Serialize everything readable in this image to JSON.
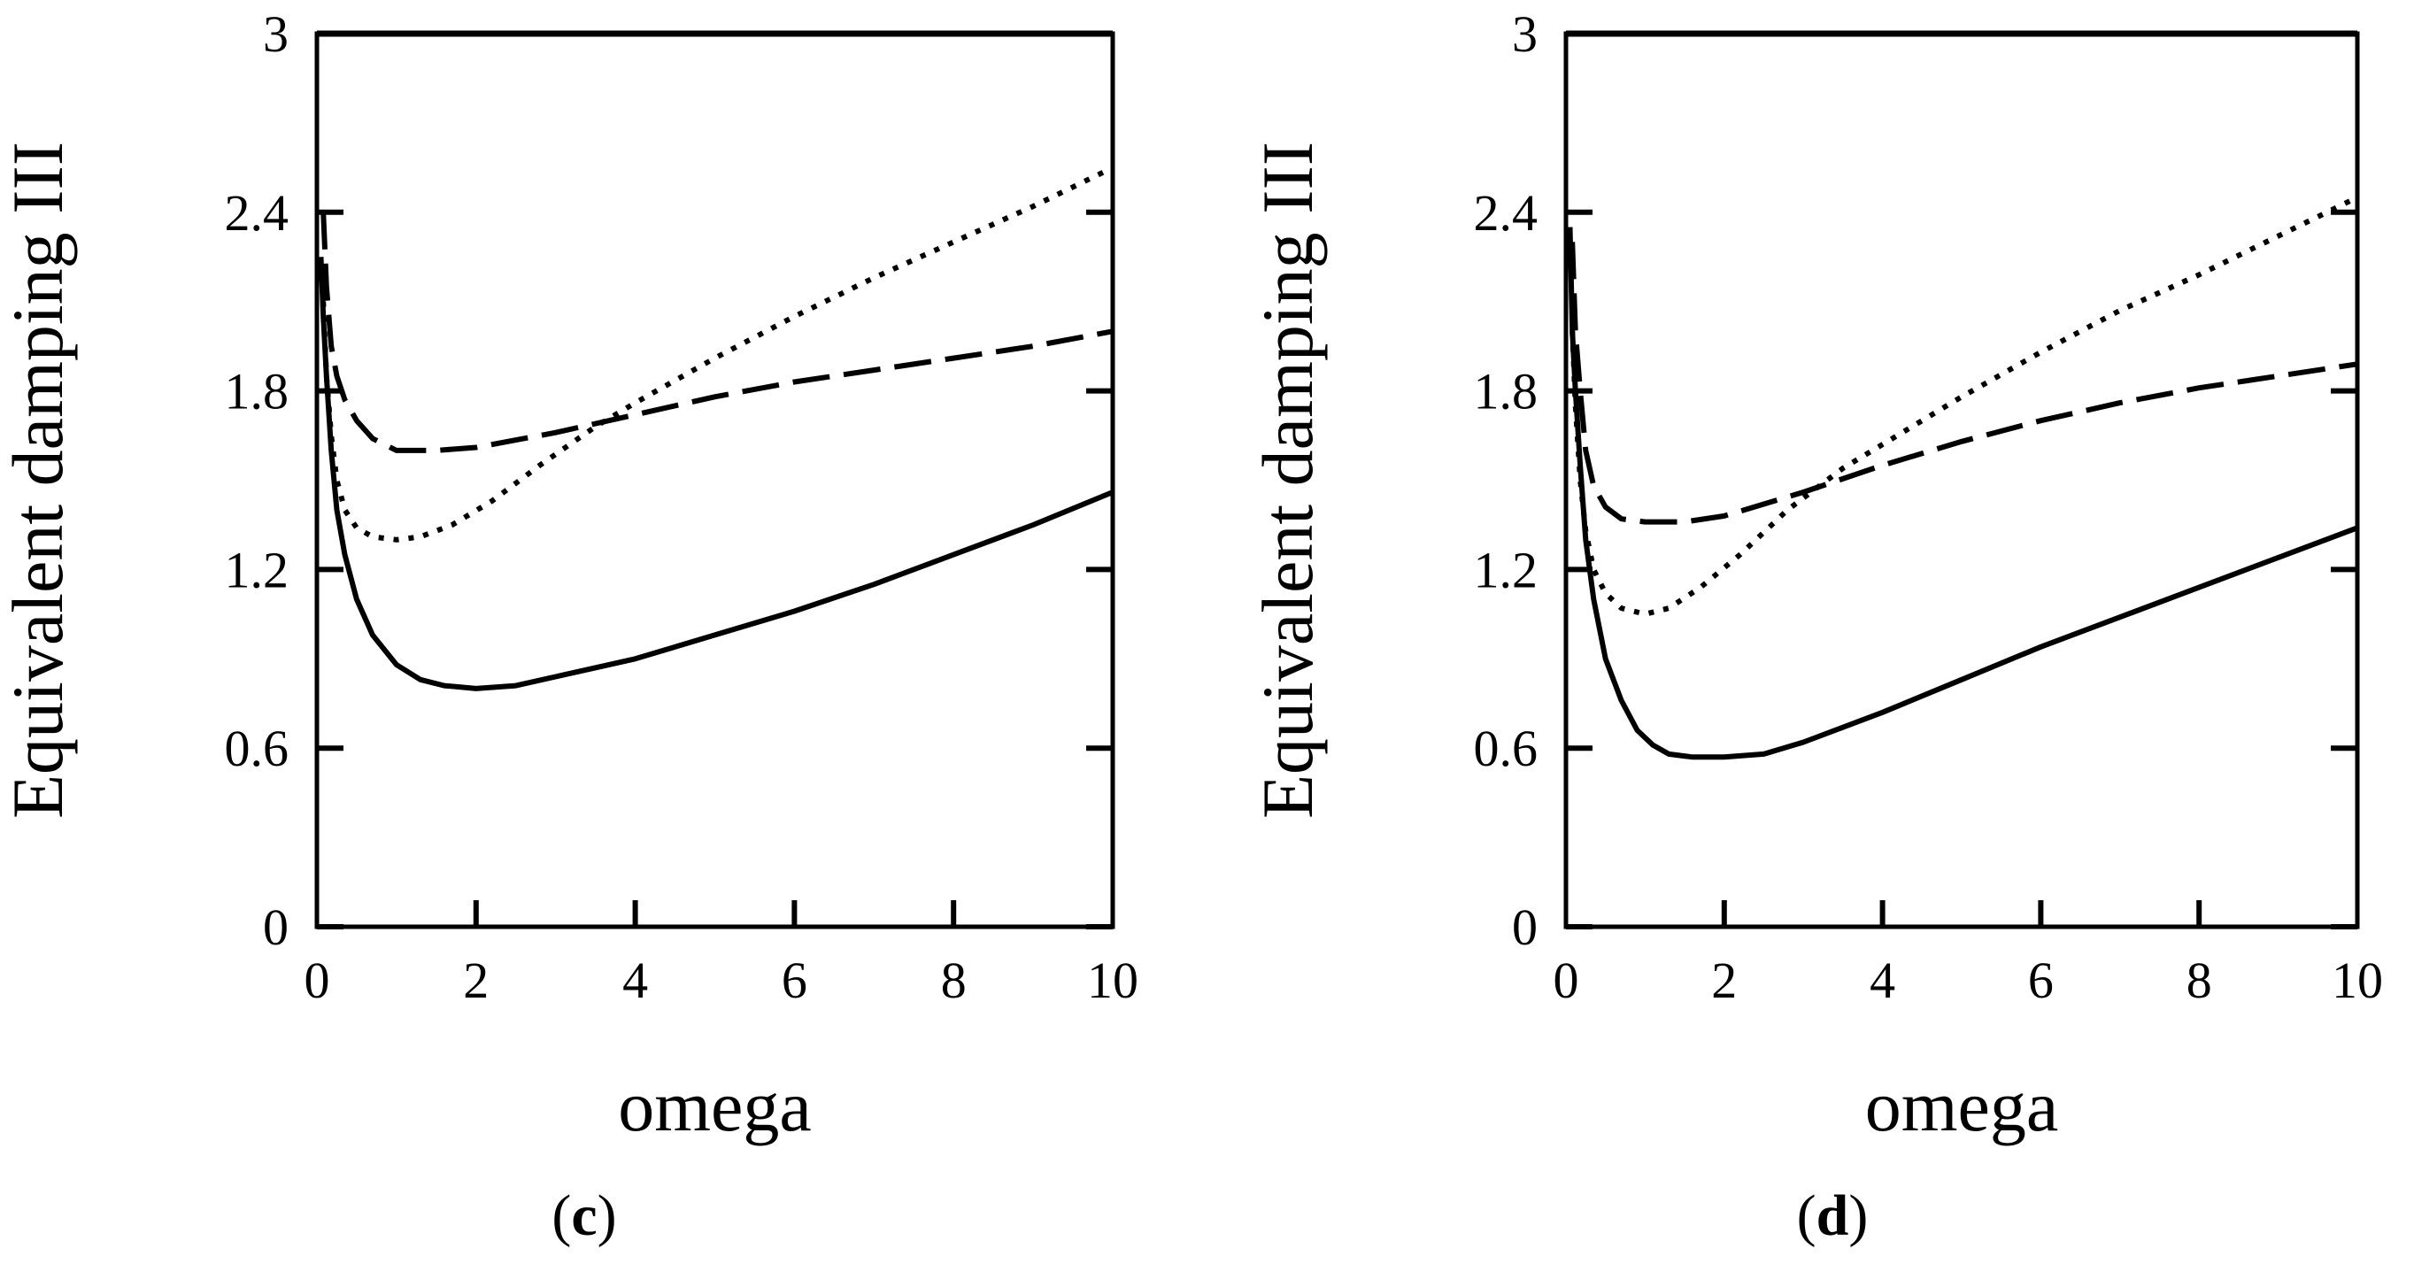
{
  "chart_data": [
    {
      "type": "line",
      "panel_label_open": "(",
      "panel_label_letter": "c",
      "panel_label_close": ")",
      "xlabel": "omega",
      "ylabel": "Equivalent damping III",
      "xlim": [
        0,
        10
      ],
      "ylim": [
        0,
        3
      ],
      "xticks": [
        0,
        2,
        4,
        6,
        8,
        10
      ],
      "yticks": [
        0,
        0.6,
        1.2,
        1.8,
        2.4,
        3
      ],
      "xtick_labels": [
        "0",
        "2",
        "4",
        "6",
        "8",
        "10"
      ],
      "ytick_labels": [
        "0",
        "0.6",
        "1.2",
        "1.8",
        "2.4",
        "3"
      ],
      "grid": false,
      "series": [
        {
          "name": "solid",
          "style": "solid",
          "x": [
            0.05,
            0.08,
            0.12,
            0.18,
            0.25,
            0.35,
            0.5,
            0.7,
            1.0,
            1.3,
            1.6,
            2.0,
            2.5,
            3.0,
            4.0,
            5.0,
            6.0,
            7.0,
            8.0,
            9.0,
            10.0
          ],
          "y": [
            2.25,
            2.05,
            1.85,
            1.6,
            1.4,
            1.25,
            1.1,
            0.98,
            0.88,
            0.83,
            0.81,
            0.8,
            0.81,
            0.84,
            0.9,
            0.98,
            1.06,
            1.15,
            1.25,
            1.35,
            1.46
          ]
        },
        {
          "name": "dotted",
          "style": "dotted",
          "x": [
            0.08,
            0.12,
            0.18,
            0.25,
            0.35,
            0.5,
            0.7,
            1.0,
            1.3,
            1.7,
            2.2,
            2.8,
            3.5,
            4.0,
            5.0,
            6.0,
            7.0,
            8.0,
            9.0,
            10.0
          ],
          "y": [
            2.1,
            1.85,
            1.65,
            1.5,
            1.4,
            1.34,
            1.31,
            1.3,
            1.31,
            1.35,
            1.43,
            1.55,
            1.68,
            1.76,
            1.91,
            2.05,
            2.18,
            2.3,
            2.42,
            2.55
          ]
        },
        {
          "name": "dashed",
          "style": "dashed",
          "x": [
            0.08,
            0.12,
            0.18,
            0.25,
            0.35,
            0.5,
            0.7,
            1.0,
            1.5,
            2.0,
            3.0,
            4.0,
            5.0,
            6.0,
            7.0,
            8.0,
            9.0,
            10.0
          ],
          "y": [
            2.4,
            2.15,
            1.95,
            1.85,
            1.77,
            1.7,
            1.64,
            1.6,
            1.6,
            1.61,
            1.66,
            1.72,
            1.78,
            1.83,
            1.87,
            1.91,
            1.95,
            2.0
          ]
        }
      ]
    },
    {
      "type": "line",
      "panel_label_open": "(",
      "panel_label_letter": "d",
      "panel_label_close": ")",
      "xlabel": "omega",
      "ylabel": "Equivalent damping III",
      "xlim": [
        0,
        10
      ],
      "ylim": [
        0,
        3
      ],
      "xticks": [
        0,
        2,
        4,
        6,
        8,
        10
      ],
      "yticks": [
        0,
        0.6,
        1.2,
        1.8,
        2.4,
        3
      ],
      "xtick_labels": [
        "0",
        "2",
        "4",
        "6",
        "8",
        "10"
      ],
      "ytick_labels": [
        "0",
        "0.6",
        "1.2",
        "1.8",
        "2.4",
        "3"
      ],
      "grid": false,
      "series": [
        {
          "name": "solid",
          "style": "solid",
          "x": [
            0.05,
            0.08,
            0.12,
            0.18,
            0.25,
            0.35,
            0.5,
            0.7,
            0.9,
            1.1,
            1.3,
            1.6,
            2.0,
            2.5,
            3.0,
            4.0,
            5.0,
            6.0,
            7.0,
            8.0,
            9.0,
            10.0
          ],
          "y": [
            2.35,
            2.0,
            1.8,
            1.55,
            1.3,
            1.1,
            0.9,
            0.76,
            0.66,
            0.61,
            0.58,
            0.57,
            0.57,
            0.58,
            0.62,
            0.72,
            0.83,
            0.94,
            1.04,
            1.14,
            1.24,
            1.34
          ]
        },
        {
          "name": "dotted",
          "style": "dotted",
          "x": [
            0.08,
            0.12,
            0.18,
            0.25,
            0.35,
            0.5,
            0.7,
            1.0,
            1.3,
            1.7,
            2.2,
            2.8,
            3.5,
            4.0,
            5.0,
            6.0,
            7.0,
            8.0,
            9.0,
            10.0
          ],
          "y": [
            2.0,
            1.75,
            1.5,
            1.33,
            1.2,
            1.12,
            1.07,
            1.05,
            1.07,
            1.14,
            1.25,
            1.4,
            1.54,
            1.62,
            1.78,
            1.93,
            2.07,
            2.19,
            2.32,
            2.45
          ]
        },
        {
          "name": "dashed",
          "style": "dashed",
          "x": [
            0.08,
            0.12,
            0.18,
            0.25,
            0.35,
            0.5,
            0.7,
            1.0,
            1.5,
            2.0,
            3.0,
            4.0,
            5.0,
            6.0,
            7.0,
            8.0,
            9.0,
            10.0
          ],
          "y": [
            2.3,
            2.0,
            1.8,
            1.6,
            1.48,
            1.41,
            1.37,
            1.36,
            1.36,
            1.38,
            1.46,
            1.55,
            1.63,
            1.7,
            1.76,
            1.81,
            1.85,
            1.89
          ]
        }
      ]
    }
  ]
}
